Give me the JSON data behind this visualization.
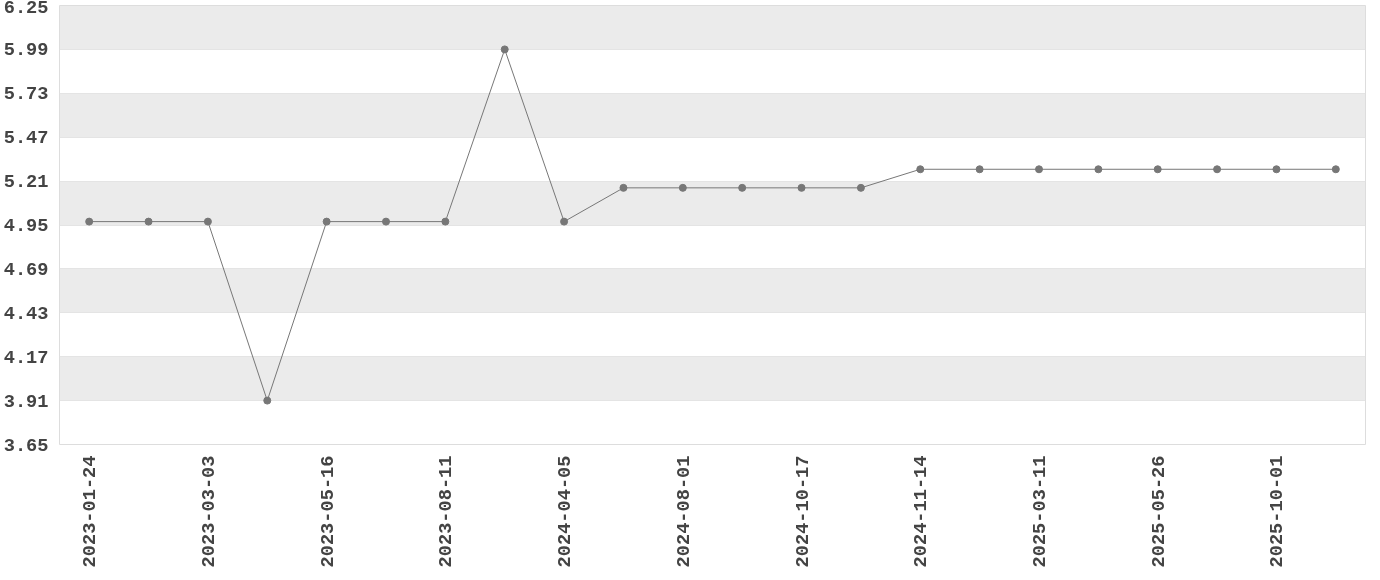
{
  "chart_data": {
    "type": "line",
    "categories": [
      "2023-01-24",
      null,
      "2023-03-03",
      null,
      "2023-05-16",
      null,
      "2023-08-11",
      null,
      "2024-04-05",
      null,
      "2024-08-01",
      null,
      "2024-10-17",
      null,
      "2024-11-14",
      null,
      "2025-03-11",
      null,
      "2025-05-26",
      null,
      "2025-10-01",
      null
    ],
    "series": [
      {
        "color": "#777777",
        "values": [
          4.97,
          4.97,
          4.97,
          3.91,
          4.97,
          4.97,
          4.97,
          5.99,
          4.97,
          5.17,
          5.17,
          5.17,
          5.17,
          5.17,
          5.28,
          5.28,
          5.28,
          5.28,
          5.28,
          5.28,
          5.28,
          5.28
        ]
      }
    ],
    "ylim": [
      3.65,
      6.25
    ],
    "yticks": [
      3.65,
      3.91,
      4.17,
      4.43,
      4.69,
      4.95,
      5.21,
      5.47,
      5.73,
      5.99,
      6.25
    ],
    "grid": "y",
    "marker": "circle",
    "line_style": "solid"
  }
}
